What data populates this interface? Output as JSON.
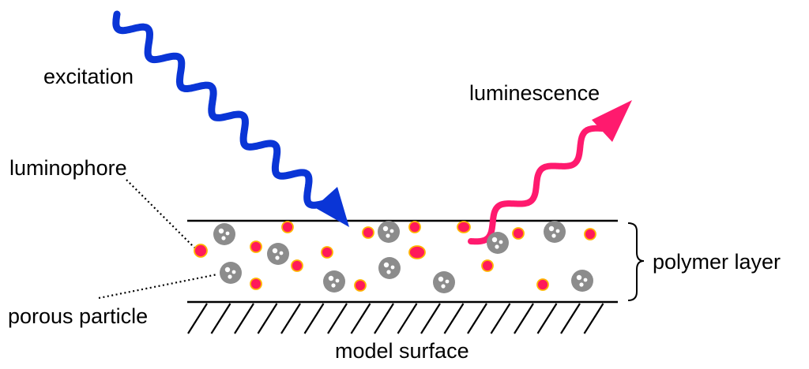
{
  "labels": {
    "excitation": "excitation",
    "luminescence": "luminescence",
    "luminophore": "luminophore",
    "porous_particle": "porous particle",
    "polymer_layer": "polymer layer",
    "model_surface": "model surface"
  },
  "colors": {
    "excitation": "#0a35d6",
    "luminescence": "#ff1a6e",
    "luminophore_fill": "#ff1a5a",
    "luminophore_edge": "#ffb300",
    "particle": "#8c8c8c",
    "particle_pore": "#ffffff",
    "line": "#000000"
  }
}
